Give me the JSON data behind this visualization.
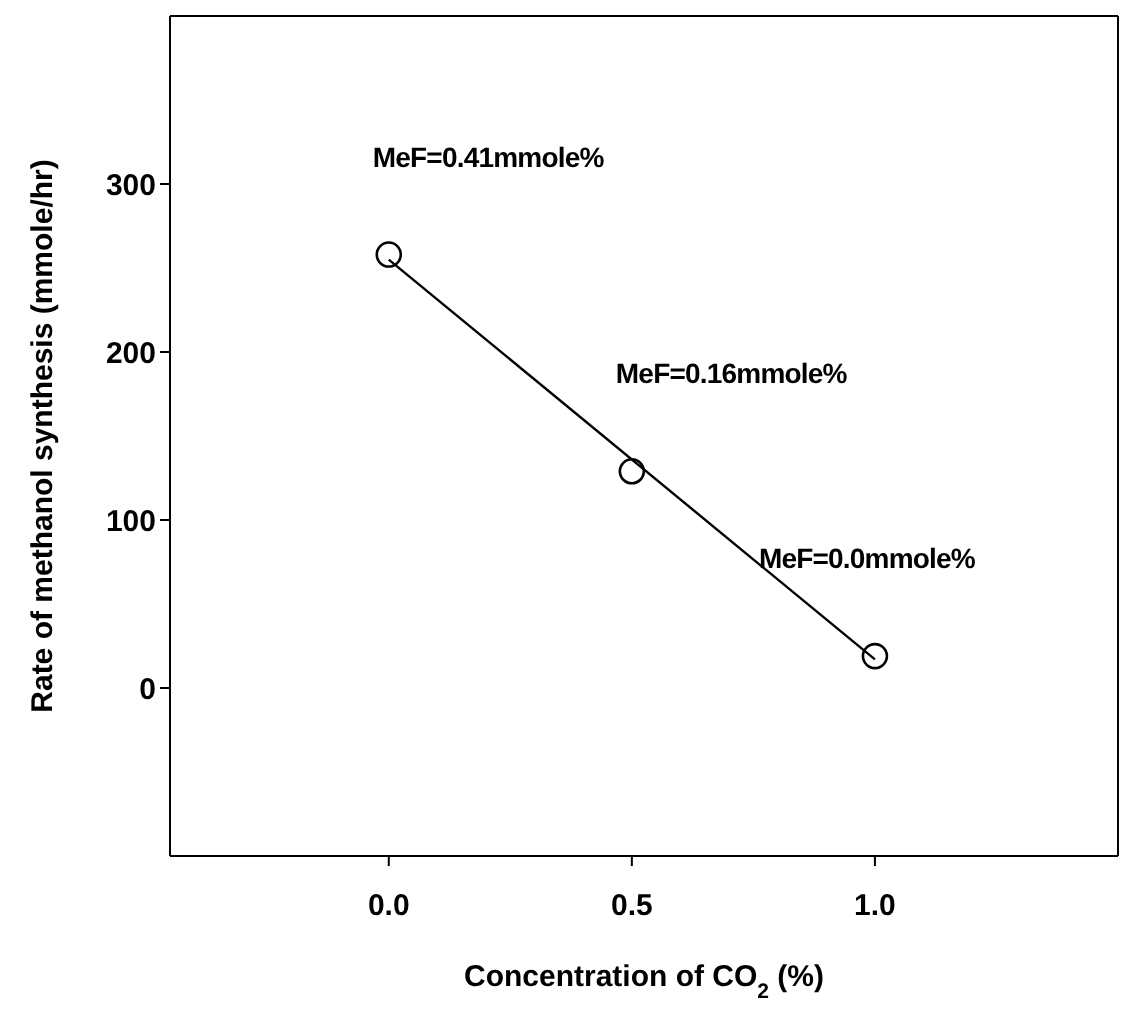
{
  "chart_data": {
    "type": "scatter",
    "xlabel": "Concentration of CO$_{2}$ (%)",
    "ylabel": "Rate of methanol synthesis (mmole/hr)",
    "xlim": [
      -0.45,
      1.5
    ],
    "xticks": [
      {
        "value": 0,
        "label": "0.0"
      },
      {
        "value": 0.5,
        "label": "0.5"
      },
      {
        "value": 1,
        "label": "1.0"
      }
    ],
    "ylim": [
      -100,
      400
    ],
    "yticks": [
      0,
      100,
      200,
      300
    ],
    "series": [
      {
        "color": "#000000",
        "marker": "circle",
        "x": [
          0,
          0.5,
          1
        ],
        "values": [
          258,
          129,
          19
        ]
      },
      {
        "type": "line",
        "color": "#000000",
        "marker": "none",
        "line_style": "solid",
        "x": [
          0,
          1
        ],
        "values": [
          255,
          17
        ]
      }
    ],
    "annotations": [
      {
        "text": "MeF=0.41mmole%",
        "x": 0,
        "y": 258
      },
      {
        "text": "MeF=0.16mmole%",
        "x": 0.5,
        "y": 129
      },
      {
        "text": "MeF=0.0mmole%",
        "x": 1,
        "y": 19
      }
    ]
  }
}
